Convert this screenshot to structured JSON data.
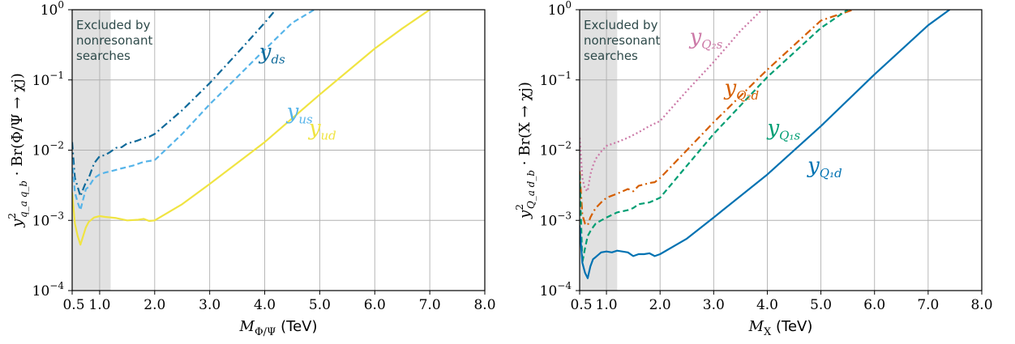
{
  "chart_data": [
    {
      "type": "line",
      "xlabel": "M_{Φ/Ψ} (TeV)",
      "xlabel_main": "M",
      "xlabel_sub": "Φ/Ψ",
      "xlabel_unit": " (TeV)",
      "ylabel": "y²_{q_a q_b} · Br(Φ/Ψ → χj)",
      "ylabel_sup": "2",
      "ylabel_sub": "q_a q_b",
      "ylabel_rest": " · Br(Φ/Ψ → χj)",
      "xlim": [
        0.5,
        8.0
      ],
      "ylim": [
        0.0001,
        1
      ],
      "yscale": "log",
      "grid": true,
      "x_ticks": [
        {
          "value": 0.5,
          "label": "0.5"
        },
        {
          "value": 1.0,
          "label": "1.0"
        },
        {
          "value": 2.0,
          "label": "2.0"
        },
        {
          "value": 3.0,
          "label": "3.0"
        },
        {
          "value": 4.0,
          "label": "4.0"
        },
        {
          "value": 5.0,
          "label": "5.0"
        },
        {
          "value": 6.0,
          "label": "6.0"
        },
        {
          "value": 7.0,
          "label": "7.0"
        },
        {
          "value": 8.0,
          "label": "8.0"
        }
      ],
      "y_ticks": [
        {
          "value": 0.0001,
          "base": "10",
          "exp": "−4"
        },
        {
          "value": 0.001,
          "base": "10",
          "exp": "−3"
        },
        {
          "value": 0.01,
          "base": "10",
          "exp": "−2"
        },
        {
          "value": 0.1,
          "base": "10",
          "exp": "−1"
        },
        {
          "value": 1,
          "base": "10",
          "exp": "0"
        }
      ],
      "excluded_region": {
        "x": [
          0.5,
          1.2
        ],
        "lines": [
          "Excluded by",
          "nonresonant",
          "searches"
        ]
      },
      "series": [
        {
          "name": "y_ds",
          "label_main": "y",
          "label_sub": "ds",
          "color": "#0f6a9a",
          "dash": "dashdot",
          "label_pos": {
            "x": 3.9,
            "y": 0.2
          },
          "x": [
            0.5,
            0.55,
            0.6,
            0.65,
            0.7,
            0.75,
            0.8,
            0.9,
            1.0,
            1.1,
            1.2,
            1.3,
            1.4,
            1.5,
            1.6,
            1.7,
            1.8,
            1.9,
            2.0,
            2.5,
            3.0,
            3.5,
            4.0,
            4.2
          ],
          "y": [
            0.013,
            0.004,
            0.003,
            0.0022,
            0.0028,
            0.0035,
            0.004,
            0.0065,
            0.0082,
            0.0085,
            0.0095,
            0.0108,
            0.011,
            0.0125,
            0.013,
            0.0138,
            0.0148,
            0.0155,
            0.017,
            0.037,
            0.09,
            0.24,
            0.65,
            1.0
          ]
        },
        {
          "name": "y_us",
          "label_main": "y",
          "label_sub": "us",
          "color": "#56b4e9",
          "dash": "dashed",
          "label_pos": {
            "x": 4.4,
            "y": 0.028
          },
          "x": [
            0.5,
            0.55,
            0.6,
            0.65,
            0.7,
            0.75,
            0.8,
            0.9,
            1.0,
            1.1,
            1.2,
            1.4,
            1.6,
            1.8,
            2.0,
            2.5,
            3.0,
            3.5,
            4.0,
            4.5,
            4.9
          ],
          "y": [
            0.0075,
            0.0025,
            0.0018,
            0.0014,
            0.002,
            0.0028,
            0.003,
            0.004,
            0.0045,
            0.0048,
            0.005,
            0.0055,
            0.006,
            0.0068,
            0.0072,
            0.017,
            0.045,
            0.11,
            0.27,
            0.65,
            1.0
          ]
        },
        {
          "name": "y_ud",
          "label_main": "y",
          "label_sub": "ud",
          "color": "#f0e442",
          "dash": "solid",
          "label_pos": {
            "x": 4.8,
            "y": 0.0165
          },
          "x": [
            0.5,
            0.55,
            0.6,
            0.65,
            0.7,
            0.75,
            0.8,
            0.9,
            1.0,
            1.1,
            1.3,
            1.5,
            1.7,
            1.8,
            1.9,
            2.0,
            2.5,
            3.0,
            4.0,
            5.0,
            6.0,
            6.5,
            7.0
          ],
          "y": [
            0.0025,
            0.0009,
            0.0006,
            0.00045,
            0.0006,
            0.0008,
            0.00095,
            0.0011,
            0.00115,
            0.00112,
            0.00108,
            0.001,
            0.00102,
            0.00105,
            0.00098,
            0.001,
            0.0017,
            0.0033,
            0.013,
            0.062,
            0.28,
            0.54,
            1.0
          ]
        }
      ]
    },
    {
      "type": "line",
      "xlabel": "M_X (TeV)",
      "xlabel_main": "M",
      "xlabel_sub": "X",
      "xlabel_unit": " (TeV)",
      "ylabel": "y²_{Q_a d_b} · Br(X → χj)",
      "ylabel_sup": "2",
      "ylabel_sub": "Q_a d_b",
      "ylabel_rest": " · Br(X → χj)",
      "xlim": [
        0.5,
        8.0
      ],
      "ylim": [
        0.0001,
        1
      ],
      "yscale": "log",
      "grid": true,
      "x_ticks": [
        {
          "value": 0.5,
          "label": "0.5"
        },
        {
          "value": 1.0,
          "label": "1.0"
        },
        {
          "value": 2.0,
          "label": "2.0"
        },
        {
          "value": 3.0,
          "label": "3.0"
        },
        {
          "value": 4.0,
          "label": "4.0"
        },
        {
          "value": 5.0,
          "label": "5.0"
        },
        {
          "value": 6.0,
          "label": "6.0"
        },
        {
          "value": 7.0,
          "label": "7.0"
        },
        {
          "value": 8.0,
          "label": "8.0"
        }
      ],
      "y_ticks": [
        {
          "value": 0.0001,
          "base": "10",
          "exp": "−4"
        },
        {
          "value": 0.001,
          "base": "10",
          "exp": "−3"
        },
        {
          "value": 0.01,
          "base": "10",
          "exp": "−2"
        },
        {
          "value": 0.1,
          "base": "10",
          "exp": "−1"
        },
        {
          "value": 1,
          "base": "10",
          "exp": "0"
        }
      ],
      "excluded_region": {
        "x": [
          0.5,
          1.2
        ],
        "lines": [
          "Excluded by",
          "nonresonant",
          "searches"
        ]
      },
      "series": [
        {
          "name": "y_Q2s",
          "label_main": "y",
          "label_sub": "Q₂s",
          "color": "#cc79a7",
          "dash": "dotted",
          "label_pos": {
            "x": 2.55,
            "y": 0.33
          },
          "x": [
            0.5,
            0.55,
            0.6,
            0.65,
            0.7,
            0.75,
            0.8,
            0.9,
            1.0,
            1.2,
            1.4,
            1.6,
            1.8,
            2.0,
            2.5,
            3.0,
            3.5,
            3.9
          ],
          "y": [
            0.015,
            0.004,
            0.0028,
            0.0026,
            0.0045,
            0.006,
            0.0075,
            0.0095,
            0.0115,
            0.013,
            0.015,
            0.018,
            0.022,
            0.026,
            0.07,
            0.18,
            0.5,
            1.0
          ]
        },
        {
          "name": "y_Q2d",
          "label_main": "y",
          "label_sub": "Q₂d",
          "color": "#d55e00",
          "dash": "dashdot",
          "label_pos": {
            "x": 3.2,
            "y": 0.062
          },
          "x": [
            0.5,
            0.55,
            0.6,
            0.65,
            0.7,
            0.75,
            0.8,
            0.9,
            1.0,
            1.2,
            1.4,
            1.5,
            1.6,
            1.8,
            1.9,
            2.0,
            2.5,
            3.0,
            4.0,
            5.0,
            5.6
          ],
          "y": [
            0.005,
            0.0012,
            0.0009,
            0.00085,
            0.0011,
            0.0013,
            0.0015,
            0.0018,
            0.0021,
            0.0024,
            0.0028,
            0.0026,
            0.0031,
            0.0034,
            0.0035,
            0.004,
            0.01,
            0.025,
            0.14,
            0.7,
            1.0
          ]
        },
        {
          "name": "y_Q1s",
          "label_main": "y",
          "label_sub": "Q₁s",
          "color": "#009e73",
          "dash": "dashed",
          "label_pos": {
            "x": 4.0,
            "y": 0.0165
          },
          "x": [
            0.5,
            0.55,
            0.6,
            0.65,
            0.7,
            0.75,
            0.8,
            0.9,
            1.0,
            1.2,
            1.4,
            1.5,
            1.6,
            1.8,
            2.0,
            2.5,
            3.0,
            4.0,
            5.0,
            5.5
          ],
          "y": [
            0.0045,
            0.00025,
            0.0004,
            0.0006,
            0.0007,
            0.0008,
            0.0009,
            0.001,
            0.0011,
            0.0013,
            0.0014,
            0.0015,
            0.0017,
            0.0018,
            0.0021,
            0.006,
            0.017,
            0.11,
            0.55,
            1.0
          ]
        },
        {
          "name": "y_Q1d",
          "label_main": "y",
          "label_sub": "Q₁d",
          "color": "#0072b2",
          "dash": "solid",
          "label_pos": {
            "x": 4.75,
            "y": 0.0048
          },
          "x": [
            0.5,
            0.55,
            0.6,
            0.65,
            0.7,
            0.75,
            0.8,
            0.9,
            1.0,
            1.1,
            1.2,
            1.4,
            1.5,
            1.6,
            1.7,
            1.8,
            1.9,
            2.0,
            2.5,
            3.0,
            4.0,
            5.0,
            6.0,
            7.0,
            7.4
          ],
          "y": [
            0.00085,
            0.00025,
            0.00018,
            0.00015,
            0.00022,
            0.00028,
            0.0003,
            0.00035,
            0.00036,
            0.00035,
            0.00037,
            0.00035,
            0.00031,
            0.00033,
            0.00033,
            0.00034,
            0.00031,
            0.00033,
            0.00055,
            0.0011,
            0.0045,
            0.022,
            0.12,
            0.6,
            1.0
          ]
        }
      ]
    }
  ]
}
